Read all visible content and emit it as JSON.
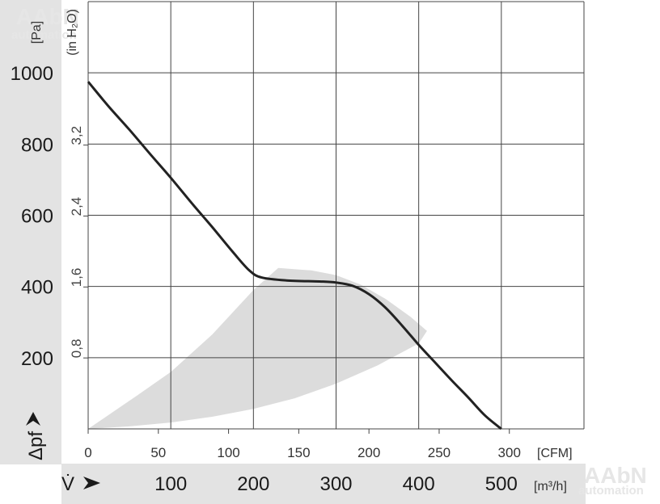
{
  "chart_data": {
    "type": "line",
    "title": "",
    "y_label_pa": "[Pa]",
    "y_label_inh2o": "(in H₂O)",
    "y_symbol": "Δpf",
    "x_label_cfm": "[CFM]",
    "x_label_m3h": "[m³/h]",
    "x_symbol": "V̇",
    "x_m3h_range": [
      0,
      600
    ],
    "y_pa_range": [
      0,
      1200
    ],
    "grid": true,
    "x_gridlines_m3h": [
      100,
      200,
      300,
      400,
      500,
      600
    ],
    "y_gridlines_pa": [
      200,
      400,
      600,
      800,
      1000,
      1200
    ],
    "y_ticks_pa": [
      200,
      400,
      600,
      800,
      1000
    ],
    "y_ticks_inh2o": [
      "0,8",
      "1,6",
      "2,4",
      "3,2"
    ],
    "y_ticks_inh2o_values": [
      0.8,
      1.6,
      2.4,
      3.2
    ],
    "x_ticks_cfm": [
      0,
      50,
      100,
      150,
      200,
      250,
      300
    ],
    "x_ticks_m3h": [
      100,
      200,
      300,
      400,
      500
    ],
    "series": [
      {
        "x": [
          0,
          25,
          50,
          75,
          100,
          125,
          150,
          175,
          195,
          210,
          240,
          280,
          300,
          320,
          340,
          360,
          380,
          400,
          420,
          440,
          460,
          480,
          500
        ],
        "y": [
          975,
          905,
          840,
          772,
          705,
          635,
          567,
          497,
          445,
          425,
          417,
          414,
          411,
          402,
          378,
          340,
          290,
          236,
          186,
          136,
          88,
          38,
          0
        ]
      }
    ],
    "operating_range": {
      "color": "#dcdcdc",
      "lower_x": [
        0,
        50,
        100,
        150,
        200,
        250,
        300,
        350,
        400
      ],
      "lower_y": [
        0,
        7,
        18,
        34,
        56,
        86,
        127,
        178,
        240
      ],
      "upper_x": [
        0,
        60,
        100,
        150,
        200,
        230
      ],
      "upper_y": [
        0,
        95,
        160,
        265,
        390,
        452
      ],
      "top_x": [
        230,
        270,
        300,
        330,
        360,
        390,
        410
      ],
      "top_y": [
        452,
        445,
        432,
        405,
        365,
        315,
        275
      ]
    },
    "curve_color": "#222222",
    "grid_color": "#444444",
    "band_color": "#e3e3e3"
  },
  "watermarks": {
    "top": "AAbN",
    "top_sub": "automation",
    "bottom": "AAbN",
    "bottom_sub": "automation"
  }
}
